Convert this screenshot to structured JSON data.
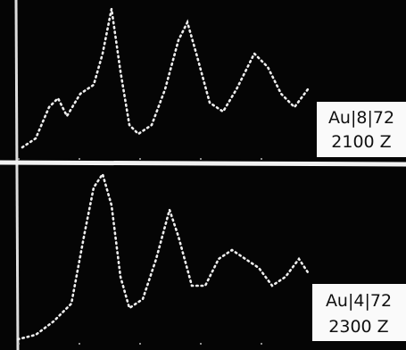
{
  "panels": [
    {
      "sample": "Au|8|72",
      "frequency": "2100 Z"
    },
    {
      "sample": "Au|4|72",
      "frequency": "2300 Z"
    }
  ]
}
